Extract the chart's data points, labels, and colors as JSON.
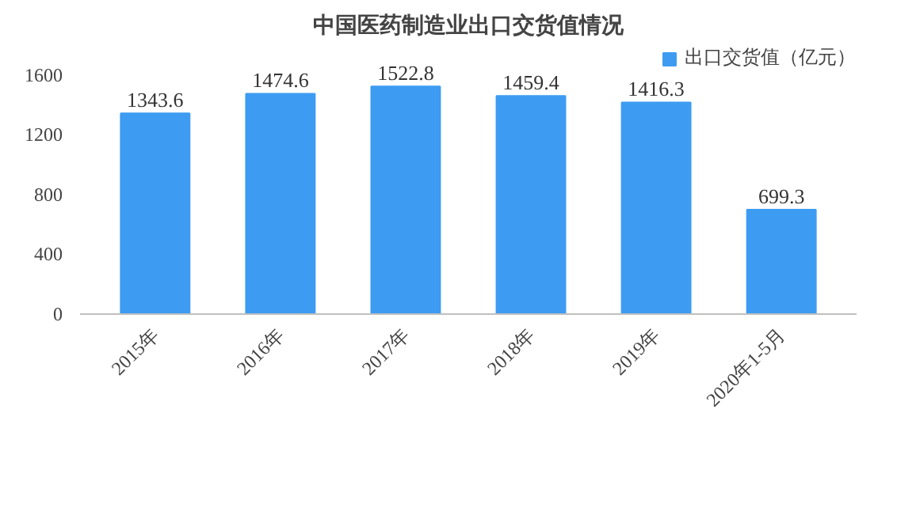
{
  "chart_data": {
    "type": "bar",
    "title": "中国医药制造业出口交货值情况",
    "categories": [
      "2015年",
      "2016年",
      "2017年",
      "2018年",
      "2019年",
      "2020年1-5月"
    ],
    "series": [
      {
        "name": "出口交货值（亿元）",
        "color": "#3d9cf2",
        "values": [
          1343.6,
          1474.6,
          1522.8,
          1459.4,
          1416.3,
          699.3
        ]
      }
    ],
    "ylim": [
      0,
      1800
    ],
    "yticks": [
      0,
      400,
      800,
      1200,
      1600
    ],
    "grid": false,
    "legend": "top right",
    "data_labels": true
  }
}
